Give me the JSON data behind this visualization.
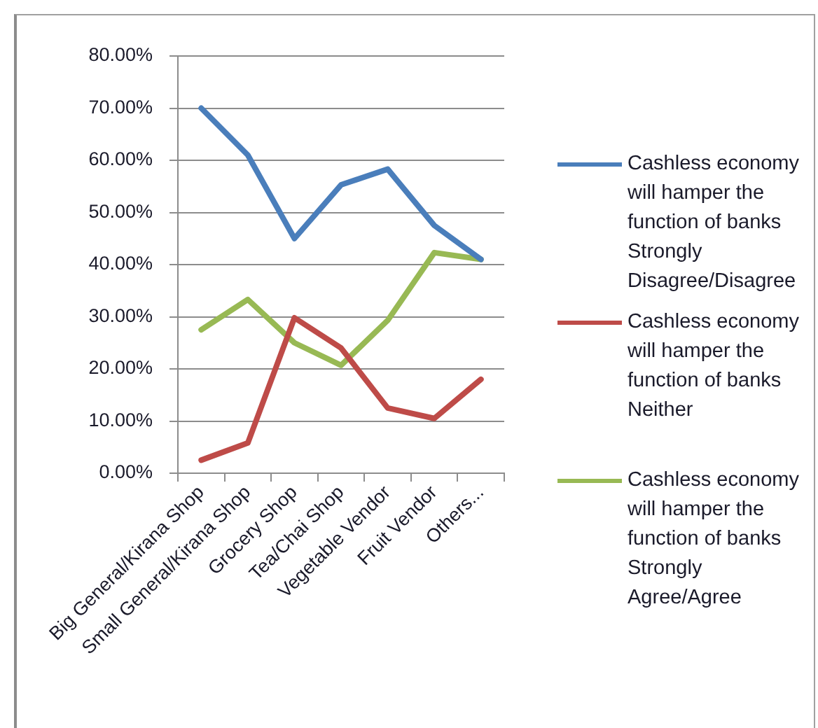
{
  "chart_data": {
    "type": "line",
    "categories": [
      "Big General/Kirana Shop",
      "Small General/Kirana Shop",
      "Grocery Shop",
      "Tea/Chai Shop",
      "Vegetable Vendor",
      "Fruit Vendor",
      "Others..."
    ],
    "series": [
      {
        "name": "Cashless economy will hamper the function of banks Strongly Disagree/Disagree",
        "color": "#4a7ebb",
        "values": [
          70,
          61,
          45,
          55.3,
          58.3,
          47.5,
          41
        ]
      },
      {
        "name": "Cashless economy will hamper the function of banks Neither",
        "color": "#be4b48",
        "values": [
          2.5,
          5.8,
          29.8,
          24,
          12.5,
          10.5,
          18
        ]
      },
      {
        "name": "Cashless economy will hamper the function of banks Strongly Agree/Agree",
        "color": "#98b954",
        "values": [
          27.5,
          33.3,
          25,
          20.7,
          29.3,
          42.3,
          41
        ]
      }
    ],
    "ylim": [
      0,
      80
    ],
    "yticks": [
      {
        "value": 0,
        "label": "0.00%"
      },
      {
        "value": 10,
        "label": "10.00%"
      },
      {
        "value": 20,
        "label": "20.00%"
      },
      {
        "value": 30,
        "label": "30.00%"
      },
      {
        "value": 40,
        "label": "40.00%"
      },
      {
        "value": 50,
        "label": "50.00%"
      },
      {
        "value": 60,
        "label": "60.00%"
      },
      {
        "value": 70,
        "label": "70.00%"
      },
      {
        "value": 80,
        "label": "80.00%"
      }
    ],
    "grid": "y",
    "legend": "right",
    "marker": "none",
    "line_style": "solid"
  }
}
